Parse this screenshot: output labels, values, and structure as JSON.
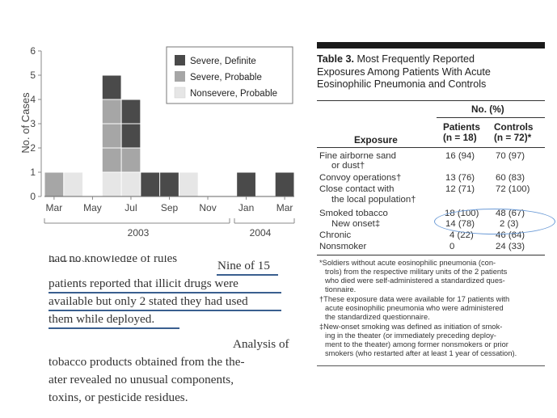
{
  "chart_data": {
    "type": "bar",
    "stacked": true,
    "ylabel": "No. of Cases",
    "ylim": [
      0,
      6
    ],
    "yticks": [
      "0",
      "1",
      "2",
      "3",
      "4",
      "5",
      "6"
    ],
    "xtick_labels": [
      "Mar",
      "May",
      "Jul",
      "Sep",
      "Nov",
      "Jan",
      "Mar"
    ],
    "year_labels": [
      "2003",
      "2004"
    ],
    "slots": 13,
    "categories": [
      "Mar 2003",
      "Apr 2003",
      "May 2003",
      "Jun 2003",
      "Jul 2003",
      "Aug 2003",
      "Sep 2003",
      "Oct 2003",
      "Nov 2003",
      "Dec 2003",
      "Jan 2004",
      "Feb 2004",
      "Mar 2004"
    ],
    "series": [
      {
        "name": "Nonsevere, Probable",
        "color": "#e6e6e6",
        "values": [
          0,
          1,
          0,
          1,
          1,
          0,
          0,
          1,
          0,
          0,
          0,
          0,
          0
        ]
      },
      {
        "name": "Severe, Probable",
        "color": "#a6a6a6",
        "values": [
          1,
          0,
          0,
          3,
          1,
          0,
          0,
          0,
          0,
          0,
          0,
          0,
          0
        ]
      },
      {
        "name": "Severe, Definite",
        "color": "#4a4a4a",
        "values": [
          0,
          0,
          0,
          1,
          2,
          1,
          1,
          0,
          0,
          0,
          1,
          0,
          1
        ]
      }
    ],
    "legend_order": [
      "Severe, Definite",
      "Severe, Probable",
      "Nonsevere, Probable"
    ],
    "legend_position": "top-right",
    "grid": false
  },
  "excerpt": {
    "cut_text": "had no knowledge of rules (WHO)",
    "line1": "Nine of 15",
    "line2": "patients reported that illicit drugs were",
    "line3": "available but only 2 stated they had used",
    "line4": "them while deployed.",
    "line5": "Analysis of",
    "line6": "tobacco products obtained from the the-",
    "line7": "ater revealed no unusual components,",
    "line8": "toxins, or pesticide residues."
  },
  "table": {
    "label": "Table 3.",
    "title_rest1": " Most Frequently Reported",
    "title2": "Exposures Among Patients With Acute",
    "title3": "Eosinophilic Pneumonia and Controls",
    "group_header": "No. (%)",
    "col_exposure": "Exposure",
    "col_patients": "Patients",
    "col_patients_n": "(n = 18)",
    "col_controls": "Controls",
    "col_controls_n": "(n = 72)*",
    "rows": [
      {
        "label": "Fine airborne sand",
        "label2": "or dust†",
        "patients": "16 (94)",
        "controls": "70 (97)"
      },
      {
        "label": "Convoy operations†",
        "label2": "",
        "patients": "13 (76)",
        "controls": "60 (83)"
      },
      {
        "label": "Close contact with",
        "label2": "the local population†",
        "patients": "12 (71)",
        "controls": "72 (100)"
      },
      {
        "label": "Smoked tobacco",
        "label2": "",
        "patients": "18 (100)",
        "controls": "48 (67)"
      },
      {
        "label": "New onset‡",
        "label2": "",
        "patients": "14 (78)",
        "controls": "2 (3)"
      },
      {
        "label": "Chronic",
        "label2": "",
        "patients": "4 (22)",
        "controls": "46 (64)"
      },
      {
        "label": "Nonsmoker",
        "label2": "",
        "patients": "0",
        "controls": "24 (33)"
      }
    ],
    "footnotes": [
      "*Soldiers without acute eosinophilic pneumonia (con-",
      "trols) from the respective military units of the 2 patients",
      "who died were self-administered a standardized ques-",
      "tionnaire.",
      "†These exposure data were available for 17 patients with",
      "acute eosinophilic pneumonia who were administered",
      "the standardized questionnaire.",
      "‡New-onset smoking was defined as initiation of smok-",
      "ing in the theater (or immediately preceding deploy-",
      "ment to the theater) among former nonsmokers or prior",
      "smokers (who restarted after at least 1 year of cessation)."
    ]
  }
}
